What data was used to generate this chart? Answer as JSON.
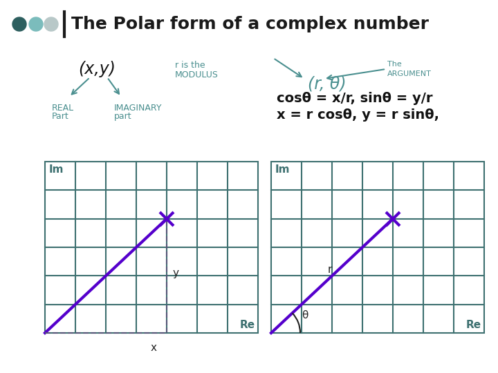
{
  "bg_color": "#ffffff",
  "title": "The Polar form of a complex number",
  "title_fontsize": 18,
  "title_color": "#1a1a1a",
  "dot_colors": [
    "#2d5f5f",
    "#7bbcbc",
    "#b8c8c8"
  ],
  "teal_color": "#4a8f8f",
  "purple_color": "#5500cc",
  "grid_color": "#3d7070",
  "label_xy": "(x,y)",
  "label_r_modulus_line1": "r is the",
  "label_r_modulus_line2": "MODULUS",
  "label_r_theta": "(r, θ)",
  "label_the_argument_line1": "The",
  "label_the_argument_line2": "ARGUMENT",
  "label_real_line1": "REAL",
  "label_real_line2": "Part",
  "label_imaginary_line1": "IMAGINARY",
  "label_imaginary_line2": "part",
  "eq1": "cosθ = x/r, sinθ = y/r",
  "eq2": "x = r cosθ, y = r sinθ,",
  "label_Im": "Im",
  "label_Re": "Re",
  "label_x_coord": "x",
  "label_y_coord": "y",
  "label_r": "r",
  "label_theta": "θ",
  "grid_rows": 6,
  "grid_cols": 7,
  "point_col": 4,
  "point_row": 2
}
